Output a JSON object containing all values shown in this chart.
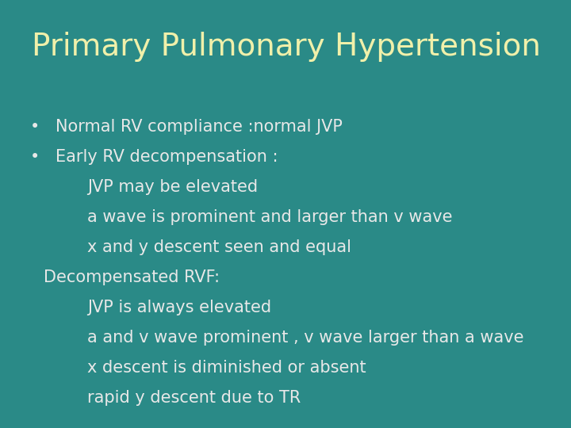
{
  "title": "Primary Pulmonary Hypertension",
  "title_color": "#f0f0aa",
  "title_fontsize": 28,
  "background_color": "#2a8a87",
  "text_color": "#e8e8e8",
  "bullet_color": "#e8e8e8",
  "body_fontsize": 15,
  "bullets": [
    "Normal RV compliance :normal JVP",
    "Early RV decompensation :"
  ],
  "indented_lines": [
    "JVP may be elevated",
    "a wave is prominent and larger than v wave",
    "x and y descent seen and equal"
  ],
  "decompensated_header": "Decompensated RVF:",
  "decompensated_lines": [
    "JVP is always elevated",
    "a and v wave prominent , v wave larger than a wave",
    "x descent is diminished or absent",
    "rapid y descent due to TR"
  ]
}
